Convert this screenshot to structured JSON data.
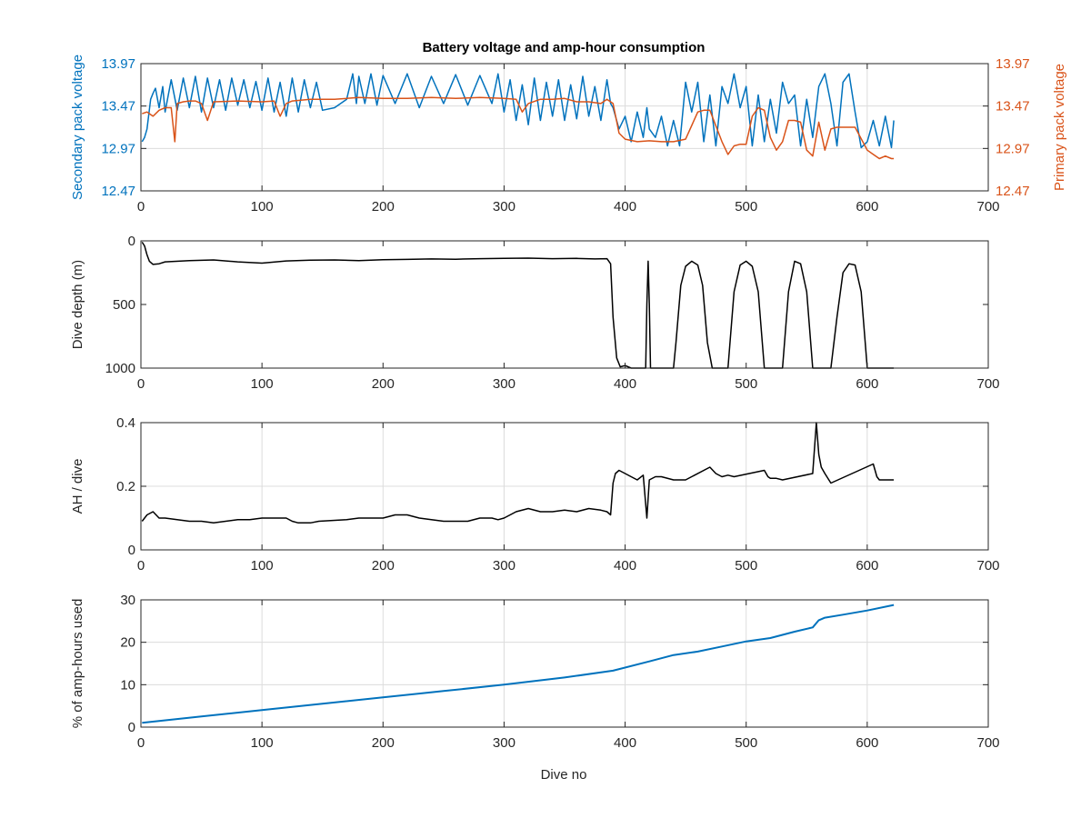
{
  "chart_data": [
    {
      "type": "line",
      "title": "Battery voltage and amp-hour consumption",
      "xlabel": "",
      "xlim": [
        0,
        700
      ],
      "xticks": [
        0,
        100,
        200,
        300,
        400,
        500,
        600,
        700
      ],
      "y_left": {
        "label": "Secondary pack voltage",
        "ylim": [
          12.47,
          13.97
        ],
        "ticks": [
          12.47,
          12.97,
          13.47,
          13.97
        ],
        "color": "#0072BD"
      },
      "y_right": {
        "label": "Primary pack voltage",
        "ylim": [
          12.47,
          13.97
        ],
        "ticks": [
          12.47,
          12.97,
          13.47,
          13.97
        ],
        "color": "#D95319"
      },
      "grid": true,
      "series": [
        {
          "axis": "left",
          "color": "#0072BD",
          "x": [
            1,
            3,
            5,
            8,
            10,
            12,
            15,
            18,
            20,
            25,
            30,
            35,
            40,
            45,
            50,
            55,
            60,
            65,
            70,
            75,
            80,
            85,
            90,
            95,
            100,
            105,
            110,
            115,
            120,
            125,
            130,
            135,
            140,
            145,
            150,
            160,
            170,
            175,
            178,
            180,
            185,
            190,
            195,
            200,
            210,
            220,
            230,
            240,
            250,
            260,
            270,
            280,
            290,
            295,
            300,
            305,
            310,
            315,
            320,
            325,
            330,
            335,
            340,
            345,
            350,
            355,
            360,
            365,
            370,
            375,
            380,
            385,
            388,
            390,
            395,
            400,
            405,
            410,
            415,
            418,
            420,
            425,
            430,
            435,
            440,
            445,
            450,
            455,
            460,
            465,
            470,
            475,
            480,
            485,
            490,
            495,
            500,
            505,
            510,
            515,
            520,
            525,
            530,
            535,
            540,
            545,
            550,
            555,
            560,
            565,
            570,
            575,
            580,
            585,
            590,
            595,
            600,
            605,
            610,
            615,
            620,
            622
          ],
          "y": [
            13.05,
            13.1,
            13.2,
            13.55,
            13.62,
            13.68,
            13.45,
            13.7,
            13.4,
            13.78,
            13.42,
            13.8,
            13.45,
            13.82,
            13.4,
            13.8,
            13.45,
            13.78,
            13.42,
            13.8,
            13.48,
            13.78,
            13.45,
            13.76,
            13.42,
            13.8,
            13.4,
            13.75,
            13.35,
            13.8,
            13.4,
            13.78,
            13.45,
            13.75,
            13.42,
            13.45,
            13.55,
            13.85,
            13.5,
            13.82,
            13.5,
            13.85,
            13.48,
            13.83,
            13.5,
            13.85,
            13.45,
            13.82,
            13.5,
            13.84,
            13.48,
            13.83,
            13.5,
            13.85,
            13.4,
            13.78,
            13.3,
            13.72,
            13.25,
            13.8,
            13.3,
            13.75,
            13.35,
            13.78,
            13.3,
            13.72,
            13.32,
            13.82,
            13.35,
            13.7,
            13.3,
            13.78,
            13.5,
            13.45,
            13.2,
            13.35,
            13.05,
            13.4,
            13.1,
            13.45,
            13.2,
            13.1,
            13.35,
            13.0,
            13.3,
            13.0,
            13.75,
            13.4,
            13.75,
            13.05,
            13.6,
            13.0,
            13.7,
            13.5,
            13.85,
            13.45,
            13.7,
            13.0,
            13.6,
            13.05,
            13.55,
            13.15,
            13.75,
            13.5,
            13.6,
            13.0,
            13.55,
            13.1,
            13.7,
            13.85,
            13.5,
            13.0,
            13.75,
            13.85,
            13.4,
            12.98,
            13.05,
            13.3,
            13.0,
            13.35,
            12.98,
            13.3
          ]
        },
        {
          "axis": "right",
          "color": "#D95319",
          "x": [
            1,
            5,
            10,
            15,
            20,
            25,
            28,
            30,
            35,
            40,
            45,
            50,
            55,
            60,
            80,
            100,
            110,
            115,
            120,
            125,
            140,
            160,
            180,
            200,
            220,
            240,
            260,
            280,
            300,
            310,
            315,
            320,
            330,
            340,
            350,
            360,
            370,
            380,
            385,
            390,
            395,
            400,
            410,
            420,
            430,
            440,
            450,
            460,
            465,
            470,
            480,
            485,
            490,
            495,
            500,
            505,
            510,
            515,
            520,
            525,
            530,
            535,
            540,
            545,
            550,
            555,
            560,
            565,
            570,
            575,
            580,
            590,
            600,
            605,
            610,
            615,
            620,
            622
          ],
          "y": [
            13.38,
            13.4,
            13.35,
            13.42,
            13.45,
            13.45,
            13.05,
            13.5,
            13.52,
            13.53,
            13.53,
            13.5,
            13.3,
            13.52,
            13.53,
            13.52,
            13.53,
            13.35,
            13.5,
            13.53,
            13.55,
            13.55,
            13.57,
            13.56,
            13.56,
            13.57,
            13.56,
            13.57,
            13.56,
            13.55,
            13.4,
            13.5,
            13.55,
            13.55,
            13.56,
            13.52,
            13.52,
            13.5,
            13.55,
            13.5,
            13.15,
            13.08,
            13.05,
            13.06,
            13.05,
            13.05,
            13.08,
            13.4,
            13.42,
            13.42,
            13.05,
            12.9,
            13.0,
            13.02,
            13.02,
            13.35,
            13.45,
            13.42,
            13.1,
            12.95,
            13.05,
            13.3,
            13.3,
            13.28,
            12.95,
            12.88,
            13.28,
            12.95,
            13.2,
            13.22,
            13.22,
            13.22,
            12.95,
            12.9,
            12.85,
            12.88,
            12.85,
            12.85
          ]
        }
      ]
    },
    {
      "type": "line",
      "title": "",
      "xlabel": "",
      "ylabel": "Dive depth (m)",
      "xlim": [
        0,
        700
      ],
      "xticks": [
        0,
        100,
        200,
        300,
        400,
        500,
        600,
        700
      ],
      "ylim": [
        0,
        1000
      ],
      "yticks": [
        0,
        500,
        1000
      ],
      "y_reversed": true,
      "grid": false,
      "series": [
        {
          "color": "#000000",
          "x": [
            1,
            3,
            5,
            7,
            10,
            15,
            20,
            40,
            60,
            80,
            100,
            120,
            140,
            160,
            180,
            200,
            220,
            240,
            260,
            280,
            300,
            320,
            340,
            360,
            375,
            385,
            388,
            390,
            393,
            396,
            400,
            405,
            410,
            415,
            417,
            418,
            419,
            420,
            421,
            425,
            430,
            440,
            442,
            446,
            450,
            455,
            460,
            464,
            468,
            472,
            476,
            478,
            480,
            485,
            490,
            495,
            500,
            505,
            510,
            515,
            520,
            525,
            530,
            535,
            540,
            545,
            550,
            555,
            560,
            570,
            575,
            580,
            585,
            590,
            595,
            600,
            610,
            620,
            622
          ],
          "y": [
            10,
            40,
            110,
            160,
            185,
            180,
            165,
            155,
            150,
            165,
            175,
            158,
            152,
            150,
            155,
            148,
            146,
            142,
            144,
            140,
            138,
            136,
            140,
            138,
            142,
            140,
            180,
            600,
            920,
            990,
            980,
            1000,
            1000,
            1000,
            1000,
            500,
            160,
            500,
            1000,
            1000,
            1000,
            1000,
            800,
            350,
            200,
            160,
            190,
            350,
            800,
            1000,
            1000,
            1000,
            1000,
            1000,
            400,
            190,
            160,
            200,
            400,
            1000,
            1000,
            1000,
            1000,
            400,
            160,
            180,
            400,
            1000,
            1000,
            1000,
            600,
            250,
            180,
            190,
            400,
            1000,
            1000,
            1000,
            1000
          ]
        }
      ]
    },
    {
      "type": "line",
      "title": "",
      "xlabel": "",
      "ylabel": "AH / dive",
      "xlim": [
        0,
        700
      ],
      "xticks": [
        0,
        100,
        200,
        300,
        400,
        500,
        600,
        700
      ],
      "ylim": [
        0,
        0.4
      ],
      "yticks": [
        0,
        0.2,
        0.4
      ],
      "grid": true,
      "series": [
        {
          "color": "#000000",
          "x": [
            1,
            5,
            10,
            15,
            20,
            30,
            40,
            50,
            60,
            70,
            80,
            90,
            100,
            110,
            115,
            120,
            125,
            130,
            140,
            147,
            170,
            180,
            190,
            200,
            210,
            220,
            230,
            240,
            250,
            260,
            270,
            280,
            290,
            295,
            300,
            305,
            310,
            320,
            330,
            340,
            350,
            360,
            370,
            380,
            385,
            388,
            390,
            392,
            395,
            400,
            405,
            410,
            415,
            418,
            420,
            425,
            430,
            440,
            445,
            450,
            470,
            475,
            480,
            485,
            490,
            515,
            518,
            520,
            525,
            530,
            555,
            558,
            560,
            562,
            565,
            570,
            605,
            608,
            610,
            615,
            620,
            622
          ],
          "y": [
            0.09,
            0.11,
            0.12,
            0.1,
            0.1,
            0.095,
            0.09,
            0.09,
            0.085,
            0.09,
            0.095,
            0.095,
            0.1,
            0.1,
            0.1,
            0.1,
            0.09,
            0.085,
            0.085,
            0.09,
            0.095,
            0.1,
            0.1,
            0.1,
            0.11,
            0.11,
            0.1,
            0.095,
            0.09,
            0.09,
            0.09,
            0.1,
            0.1,
            0.095,
            0.1,
            0.11,
            0.12,
            0.13,
            0.12,
            0.12,
            0.125,
            0.12,
            0.13,
            0.125,
            0.12,
            0.11,
            0.21,
            0.24,
            0.25,
            0.24,
            0.23,
            0.22,
            0.235,
            0.1,
            0.22,
            0.23,
            0.23,
            0.22,
            0.22,
            0.22,
            0.26,
            0.24,
            0.23,
            0.235,
            0.23,
            0.25,
            0.23,
            0.225,
            0.225,
            0.22,
            0.24,
            0.4,
            0.3,
            0.26,
            0.24,
            0.21,
            0.27,
            0.23,
            0.22,
            0.22,
            0.22,
            0.22
          ]
        }
      ]
    },
    {
      "type": "line",
      "title": "",
      "xlabel": "Dive no",
      "ylabel": "% of amp-hours used",
      "xlim": [
        0,
        700
      ],
      "xticks": [
        0,
        100,
        200,
        300,
        400,
        500,
        600,
        700
      ],
      "ylim": [
        0,
        30
      ],
      "yticks": [
        0,
        10,
        20,
        30
      ],
      "grid": true,
      "series": [
        {
          "color": "#0072BD",
          "x": [
            1,
            50,
            100,
            150,
            200,
            250,
            300,
            350,
            390,
            420,
            440,
            460,
            480,
            500,
            520,
            540,
            555,
            560,
            565,
            580,
            600,
            622
          ],
          "y": [
            1,
            2.5,
            4,
            5.5,
            7,
            8.5,
            10,
            11.7,
            13.3,
            15.5,
            17,
            17.8,
            19,
            20.2,
            21,
            22.5,
            23.5,
            25.2,
            25.8,
            26.5,
            27.5,
            28.8
          ]
        }
      ]
    }
  ]
}
